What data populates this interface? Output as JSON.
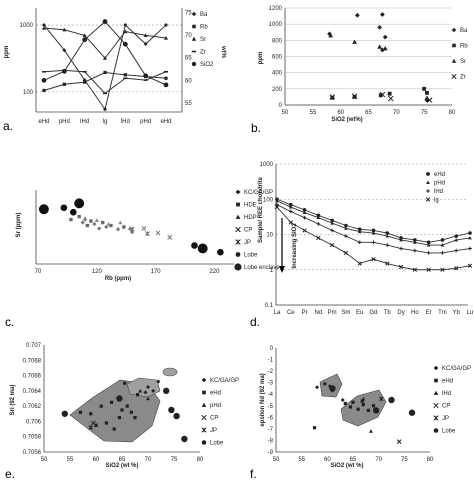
{
  "chart_data": [
    {
      "panel": "a.",
      "type": "line",
      "categories": [
        "eHd",
        "pHd",
        "lHd",
        "lg",
        "lHd",
        "pHd",
        "eHd"
      ],
      "y_left_label": "ppm",
      "y_left_scale": "log",
      "y_left_ticks": [
        "1000",
        "100"
      ],
      "y_left_lim": [
        50,
        1800
      ],
      "y_right_label": "wt%",
      "y_right_ticks": [
        "75",
        "70",
        "65",
        "60",
        "55"
      ],
      "y_right_lim": [
        53,
        76
      ],
      "series": [
        {
          "name": "Ba",
          "axis": "left",
          "marker": "diamond",
          "values": [
            1000,
            420,
            150,
            55,
            1000,
            520,
            1000
          ]
        },
        {
          "name": "Rb",
          "axis": "left",
          "marker": "square",
          "values": [
            105,
            130,
            140,
            195,
            180,
            170,
            160
          ]
        },
        {
          "name": "Sr",
          "axis": "left",
          "marker": "triangle",
          "values": [
            900,
            850,
            700,
            320,
            800,
            700,
            640
          ]
        },
        {
          "name": "Zr",
          "axis": "left",
          "marker": "dash",
          "values": [
            200,
            210,
            200,
            95,
            160,
            150,
            200
          ]
        },
        {
          "name": "SiO2",
          "axis": "right",
          "marker": "circle",
          "values": [
            60,
            62,
            69,
            73,
            68,
            61,
            59
          ]
        }
      ]
    },
    {
      "panel": "b.",
      "type": "scatter",
      "xlabel": "SiO2 (wt%)",
      "ylabel": "ppm",
      "xlim": [
        50,
        80
      ],
      "ylim": [
        0,
        1200
      ],
      "x_ticks": [
        "50",
        "55",
        "60",
        "65",
        "70",
        "75",
        "80"
      ],
      "y_ticks": [
        "0",
        "200",
        "400",
        "600",
        "800",
        "1000",
        "1200"
      ],
      "series": [
        {
          "name": "Ba",
          "marker": "diamond",
          "points": [
            [
              58,
              880
            ],
            [
              63,
              1110
            ],
            [
              67.5,
              1120
            ],
            [
              67,
              960
            ],
            [
              68,
              840
            ],
            [
              67.5,
              680
            ],
            [
              75.5,
              60
            ]
          ]
        },
        {
          "name": "Rb",
          "marker": "square",
          "points": [
            [
              58.5,
              90
            ],
            [
              62.5,
              100
            ],
            [
              67.2,
              120
            ],
            [
              68.8,
              140
            ],
            [
              75,
              200
            ],
            [
              75.5,
              150
            ]
          ]
        },
        {
          "name": "Sr",
          "marker": "triangle",
          "points": [
            [
              58.2,
              860
            ],
            [
              62.5,
              780
            ],
            [
              67,
              720
            ],
            [
              68,
              700
            ],
            [
              75.5,
              90
            ]
          ]
        },
        {
          "name": "Zr",
          "marker": "x",
          "points": [
            [
              58.5,
              100
            ],
            [
              62.5,
              110
            ],
            [
              67.5,
              130
            ],
            [
              69,
              80
            ],
            [
              76,
              60
            ]
          ]
        }
      ]
    },
    {
      "panel": "c.",
      "type": "scatter",
      "xlabel": "Rb (ppm)",
      "ylabel": "Sr (ppm)",
      "xlim": [
        70,
        240
      ],
      "ylim": [
        0,
        1000
      ],
      "x_ticks": [
        "70",
        "120",
        "170",
        "220"
      ],
      "series": [
        {
          "name": "KC/GA/GP",
          "marker": "diamond",
          "points": [
            [
              100,
              680
            ],
            [
              110,
              600
            ],
            [
              118,
              540
            ],
            [
              128,
              500
            ],
            [
              138,
              470
            ],
            [
              150,
              430
            ],
            [
              108,
              560
            ],
            [
              122,
              480
            ]
          ]
        },
        {
          "name": "HDE",
          "marker": "square",
          "points": [
            [
              105,
              640
            ],
            [
              115,
              580
            ],
            [
              125,
              560
            ],
            [
              132,
              520
            ],
            [
              143,
              500
            ],
            [
              112,
              520
            ],
            [
              98,
              600
            ]
          ]
        },
        {
          "name": "HDP",
          "marker": "triangle",
          "points": [
            [
              110,
              620
            ],
            [
              120,
              590
            ],
            [
              130,
              540
            ],
            [
              140,
              560
            ],
            [
              148,
              480
            ]
          ]
        },
        {
          "name": "CP",
          "marker": "x",
          "points": [
            [
              160,
              480
            ],
            [
              172,
              420
            ],
            [
              182,
              360
            ]
          ]
        },
        {
          "name": "JP",
          "marker": "asterisk",
          "points": [
            [
              150,
              470
            ],
            [
              163,
              410
            ]
          ]
        },
        {
          "name": "Lobe",
          "marker": "circle",
          "points": [
            [
              92,
              760
            ],
            [
              100,
              700
            ],
            [
              203,
              250
            ],
            [
              225,
              160
            ]
          ]
        },
        {
          "name": "Lobe enclave",
          "marker": "circle-large",
          "points": [
            [
              75,
              740
            ],
            [
              105,
              820
            ],
            [
              210,
              210
            ]
          ]
        }
      ]
    },
    {
      "panel": "d.",
      "type": "line",
      "ylabel": "Sample/ REE chondrite",
      "y_scale": "log",
      "y_ticks": [
        "1000",
        "100",
        "10",
        "1",
        "0.1"
      ],
      "ylim": [
        0.1,
        1000
      ],
      "categories": [
        "La",
        "Ce",
        "Pr",
        "Nd",
        "Pm",
        "Sm",
        "Eu",
        "Gd",
        "Tb",
        "Dy",
        "Ho",
        "Er",
        "Tm",
        "Yb",
        "Lu"
      ],
      "annotation": "Increasing SiO2",
      "series": [
        {
          "name": "eHd",
          "marker": "circle",
          "values": [
            100,
            70,
            50,
            35,
            25,
            18,
            14,
            13,
            11,
            8,
            7,
            6,
            7,
            9,
            11
          ]
        },
        {
          "name": "pHd",
          "marker": "triangle",
          "values": [
            90,
            60,
            42,
            30,
            21,
            15,
            12,
            11,
            9,
            7,
            6,
            5,
            5,
            7,
            8
          ]
        },
        {
          "name": "lHd",
          "marker": "plus",
          "values": [
            70,
            45,
            30,
            20,
            13,
            9,
            6,
            6,
            5,
            4,
            3.5,
            3,
            3,
            3.5,
            4
          ]
        },
        {
          "name": "lg",
          "marker": "x",
          "values": [
            60,
            22,
            13,
            8,
            5,
            3,
            1.5,
            2,
            1.5,
            1.2,
            1,
            1,
            1,
            1.1,
            1.3
          ]
        }
      ]
    },
    {
      "panel": "e.",
      "type": "scatter",
      "xlabel": "SiO2 (wt %)",
      "ylabel": "Sri (92 ma)",
      "xlim": [
        50,
        80
      ],
      "ylim": [
        0.7056,
        0.707
      ],
      "x_ticks": [
        "50",
        "55",
        "60",
        "65",
        "70",
        "75",
        "80"
      ],
      "y_ticks": [
        "0.707",
        "0.7068",
        "0.7066",
        "0.7064",
        "0.7062",
        "0.706",
        "0.7058",
        "0.7056"
      ],
      "series": [
        {
          "name": "KC/GA/GP",
          "marker": "diamond",
          "points": [
            [
              70,
              0.70645
            ],
            [
              71,
              0.7064
            ],
            [
              72,
              0.70652
            ],
            [
              69.5,
              0.70638
            ]
          ]
        },
        {
          "name": "eHd",
          "marker": "square",
          "points": [
            [
              57,
              0.70612
            ],
            [
              59,
              0.7061
            ],
            [
              60,
              0.70595
            ],
            [
              61,
              0.7062
            ],
            [
              62,
              0.70598
            ],
            [
              63,
              0.70625
            ],
            [
              64.5,
              0.70605
            ],
            [
              65,
              0.70615
            ],
            [
              66,
              0.7062
            ],
            [
              67.5,
              0.70605
            ],
            [
              65.5,
              0.7065
            ],
            [
              68,
              0.70635
            ],
            [
              66.8,
              0.70612
            ],
            [
              63.5,
              0.7059
            ]
          ]
        },
        {
          "name": "pHd",
          "marker": "triangle",
          "points": [
            [
              60,
              0.70595
            ],
            [
              68.5,
              0.7064
            ],
            [
              70,
              0.7063
            ]
          ]
        },
        {
          "name": "CP",
          "marker": "x",
          "points": [
            [
              59.5,
              0.70598
            ]
          ]
        },
        {
          "name": "JP",
          "marker": "asterisk",
          "points": [
            [
              59,
              0.70592
            ]
          ]
        },
        {
          "name": "Lobe",
          "marker": "circle",
          "points": [
            [
              54,
              0.7061
            ],
            [
              64.5,
              0.7063
            ],
            [
              73.5,
              0.7064
            ],
            [
              74.5,
              0.70615
            ],
            [
              75.5,
              0.70607
            ],
            [
              77,
              0.70577
            ]
          ]
        }
      ]
    },
    {
      "panel": "f.",
      "type": "scatter",
      "xlabel": "SiO2 (wt %)",
      "ylabel": "epsilon Nd (92 ma)",
      "xlim": [
        50,
        80
      ],
      "ylim": [
        -9,
        0
      ],
      "x_ticks": [
        "50",
        "55",
        "60",
        "65",
        "70",
        "75",
        "80"
      ],
      "y_ticks": [
        "0",
        "-1",
        "-2",
        "-3",
        "-4",
        "-5",
        "-6",
        "-7",
        "-8",
        "-9"
      ],
      "series": [
        {
          "name": "KC/GA/GP",
          "marker": "diamond",
          "points": [
            [
              58,
              -3.4
            ],
            [
              59.5,
              -3.1
            ],
            [
              60.5,
              -3.3
            ],
            [
              61,
              -3.7
            ],
            [
              63,
              -4.5
            ]
          ]
        },
        {
          "name": "eHd",
          "marker": "square",
          "points": [
            [
              57.5,
              -6.9
            ],
            [
              63.5,
              -4.8
            ],
            [
              64.5,
              -5.1
            ],
            [
              65,
              -4.7
            ],
            [
              66,
              -5.3
            ],
            [
              67,
              -4.9
            ],
            [
              68,
              -5.4
            ],
            [
              69,
              -5.0
            ],
            [
              66.8,
              -4.6
            ]
          ]
        },
        {
          "name": "lHd",
          "marker": "triangle",
          "points": [
            [
              68.5,
              -7.2
            ],
            [
              67,
              -4.4
            ]
          ]
        },
        {
          "name": "CP",
          "marker": "x",
          "points": [
            [
              74,
              -8.1
            ]
          ]
        },
        {
          "name": "JP",
          "marker": "asterisk",
          "points": [
            [
              70.5,
              -4.4
            ]
          ]
        },
        {
          "name": "Lobe",
          "marker": "circle",
          "points": [
            [
              69.5,
              -5.4
            ],
            [
              72.5,
              -4.5
            ],
            [
              76.5,
              -5.6
            ],
            [
              61,
              -3.5
            ]
          ]
        }
      ]
    }
  ],
  "panel_labels": [
    "a.",
    "b.",
    "c.",
    "d.",
    "e.",
    "f."
  ],
  "axis_texts": {
    "a_left": "ppm",
    "a_right": "wt%",
    "b_x": "SiO2 (wt%)",
    "b_y": "ppm",
    "c_x": "Rb (ppm)",
    "c_y": "Sr (ppm)",
    "d_y": "Sample/ REE chondrite",
    "d_note": "Increasing SiO2",
    "e_x": "SiO2 (wt %)",
    "e_y": "Sri (92 ma)",
    "f_x": "SiO2 (wt %)",
    "f_y": "epsilon Nd (92 ma)"
  }
}
